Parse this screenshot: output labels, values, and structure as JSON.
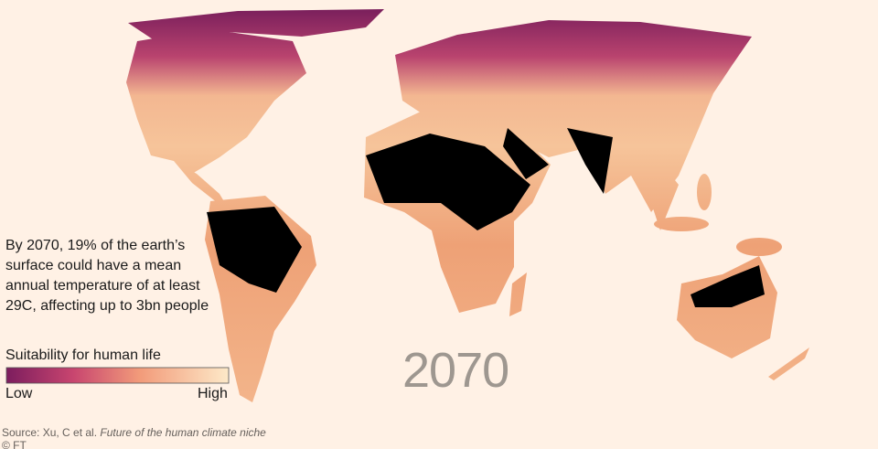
{
  "annotation": "By 2070, 19% of the earth’s surface could have a mean annual temperature of at least 29C, affecting up to 3bn people",
  "legend": {
    "title": "Suitability for human life",
    "low": "Low",
    "high": "High"
  },
  "year": "2070",
  "source": {
    "prefix": "Source: Xu, C et al.",
    "title": "Future of the human climate niche"
  },
  "copyright": "© FT"
}
